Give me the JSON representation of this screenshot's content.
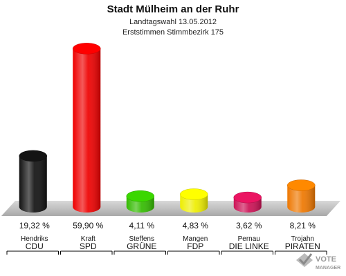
{
  "chart_data": {
    "type": "bar",
    "title": "Stadt Mülheim an der Ruhr",
    "subtitle1": "Landtagswahl 13.05.2012",
    "subtitle2": "Erststimmen Stimmbezirk 175",
    "categories": [
      "CDU",
      "SPD",
      "GRÜNE",
      "FDP",
      "DIE LINKE",
      "PIRATEN"
    ],
    "candidates": [
      "Hendriks",
      "Kraft",
      "Steffens",
      "Mangen",
      "Pernau",
      "Trojahn"
    ],
    "values": [
      19.32,
      59.9,
      4.11,
      4.83,
      3.62,
      8.21
    ],
    "value_labels": [
      "19,32 %",
      "59,90 %",
      "4,11 %",
      "4,83 %",
      "3,62 %",
      "8,21 %"
    ],
    "colors": [
      "#111111",
      "#ee0000",
      "#33bb00",
      "#eeee00",
      "#cc1155",
      "#ee7700"
    ],
    "ylim": [
      0,
      60
    ],
    "grid": false,
    "legend": "none"
  },
  "logo": {
    "text_top": "VOTE",
    "text_bottom": "MANAGER"
  }
}
